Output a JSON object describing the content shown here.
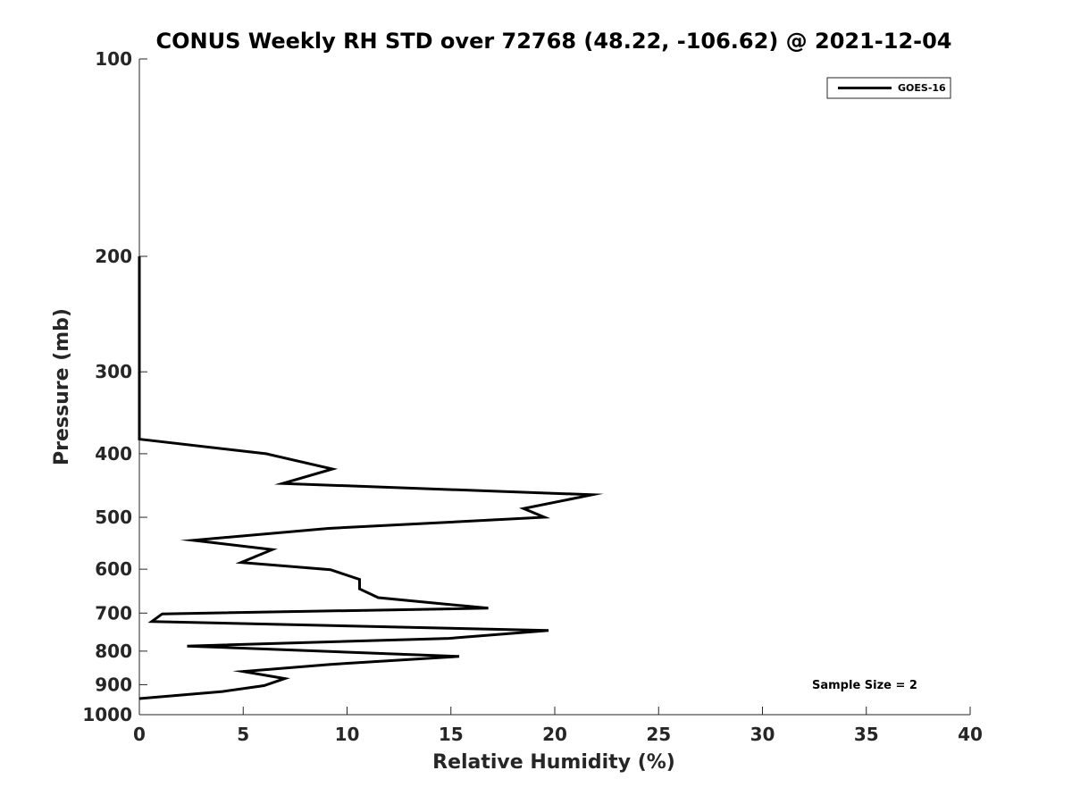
{
  "chart_data": {
    "type": "line",
    "title": "CONUS Weekly RH STD over 72768 (48.22, -106.62) @ 2021-12-04",
    "xlabel": "Relative Humidity (%)",
    "ylabel": "Pressure (mb)",
    "xlim": [
      0,
      40
    ],
    "ylim": [
      100,
      1000
    ],
    "y_scale": "log",
    "y_reversed": true,
    "x_ticks": [
      0,
      5,
      10,
      15,
      20,
      25,
      30,
      35,
      40
    ],
    "y_ticks": [
      100,
      200,
      300,
      400,
      500,
      600,
      700,
      800,
      900,
      1000
    ],
    "grid": false,
    "legend_position": "top-right",
    "series": [
      {
        "name": "GOES-16",
        "color": "#000000",
        "points": [
          {
            "x": 0,
            "y": 200
          },
          {
            "x": 0,
            "y": 250
          },
          {
            "x": 0,
            "y": 300
          },
          {
            "x": 0,
            "y": 350
          },
          {
            "x": 0,
            "y": 380
          },
          {
            "x": 6.1,
            "y": 400
          },
          {
            "x": 9.3,
            "y": 422
          },
          {
            "x": 6.9,
            "y": 444
          },
          {
            "x": 21.8,
            "y": 462
          },
          {
            "x": 18.5,
            "y": 485
          },
          {
            "x": 19.5,
            "y": 500
          },
          {
            "x": 9.1,
            "y": 520
          },
          {
            "x": 2.6,
            "y": 542
          },
          {
            "x": 6.4,
            "y": 560
          },
          {
            "x": 4.9,
            "y": 586
          },
          {
            "x": 9.2,
            "y": 601
          },
          {
            "x": 10.6,
            "y": 622
          },
          {
            "x": 10.6,
            "y": 643
          },
          {
            "x": 11.5,
            "y": 663
          },
          {
            "x": 16.8,
            "y": 688
          },
          {
            "x": 1.1,
            "y": 702
          },
          {
            "x": 0.6,
            "y": 721
          },
          {
            "x": 19.7,
            "y": 744
          },
          {
            "x": 14.9,
            "y": 765
          },
          {
            "x": 2.3,
            "y": 786
          },
          {
            "x": 15.4,
            "y": 815
          },
          {
            "x": 9.2,
            "y": 838
          },
          {
            "x": 5.0,
            "y": 859
          },
          {
            "x": 7.0,
            "y": 881
          },
          {
            "x": 6.0,
            "y": 903
          },
          {
            "x": 4.0,
            "y": 922
          },
          {
            "x": 0,
            "y": 945
          }
        ]
      }
    ],
    "annotation": "Sample Size = 2"
  }
}
